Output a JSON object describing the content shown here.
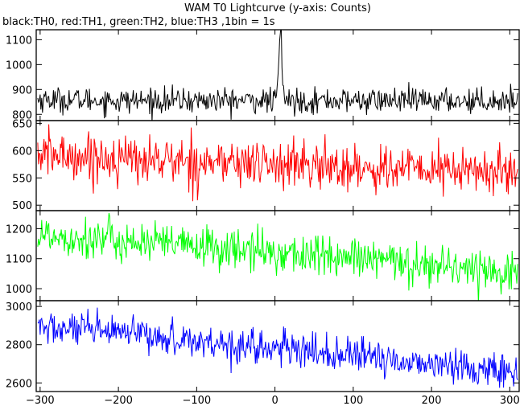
{
  "title": "WAM T0 Lightcurve (y-axis: Counts)",
  "subtitle": "black:TH0, red:TH1, green:TH2, blue:TH3 ,1bin = 1s",
  "colors": {
    "TH0": "#000000",
    "TH1": "#ff0000",
    "TH2": "#00ff00",
    "TH3": "#0000ff"
  },
  "chart_data": {
    "type": "line",
    "title": "WAM T0 Lightcurve (y-axis: Counts)",
    "subtitle": "black:TH0, red:TH1, green:TH2, blue:TH3 ,1bin = 1s",
    "xlabel": "",
    "ylabel": "Counts",
    "xlim": [
      -305,
      312
    ],
    "xticks": [
      -300,
      -200,
      -100,
      0,
      100,
      200,
      300
    ],
    "bin_seconds": 1,
    "panels": [
      {
        "name": "TH0",
        "color": "#000000",
        "ylim": [
          775,
          1140
        ],
        "yticks": [
          800,
          900,
          1000,
          1100
        ],
        "trend_x": [
          -300,
          -200,
          -100,
          0,
          100,
          200,
          300
        ],
        "trend_y": [
          860,
          855,
          855,
          855,
          855,
          855,
          855
        ],
        "noise_sd": 25,
        "burst": {
          "x": [
            2,
            4,
            6,
            7,
            8,
            9,
            10,
            12
          ],
          "y": [
            880,
            950,
            1090,
            1150,
            1140,
            1000,
            920,
            870
          ]
        }
      },
      {
        "name": "TH1",
        "color": "#ff0000",
        "ylim": [
          490,
          655
        ],
        "yticks": [
          500,
          550,
          600,
          650
        ],
        "trend_x": [
          -300,
          -200,
          -100,
          0,
          100,
          200,
          300
        ],
        "trend_y": [
          593,
          585,
          580,
          575,
          568,
          565,
          560
        ],
        "noise_sd": 22
      },
      {
        "name": "TH2",
        "color": "#00ff00",
        "ylim": [
          960,
          1260
        ],
        "yticks": [
          1000,
          1100,
          1200
        ],
        "trend_x": [
          -300,
          -200,
          -100,
          0,
          100,
          200,
          300
        ],
        "trend_y": [
          1180,
          1160,
          1140,
          1120,
          1100,
          1080,
          1055
        ],
        "noise_sd": 35
      },
      {
        "name": "TH3",
        "color": "#0000ff",
        "ylim": [
          2555,
          3030
        ],
        "yticks": [
          2600,
          2800,
          3000
        ],
        "trend_x": [
          -300,
          -200,
          -100,
          0,
          100,
          200,
          300
        ],
        "trend_y": [
          2890,
          2860,
          2820,
          2780,
          2740,
          2700,
          2660
        ],
        "noise_sd": 45
      }
    ]
  }
}
